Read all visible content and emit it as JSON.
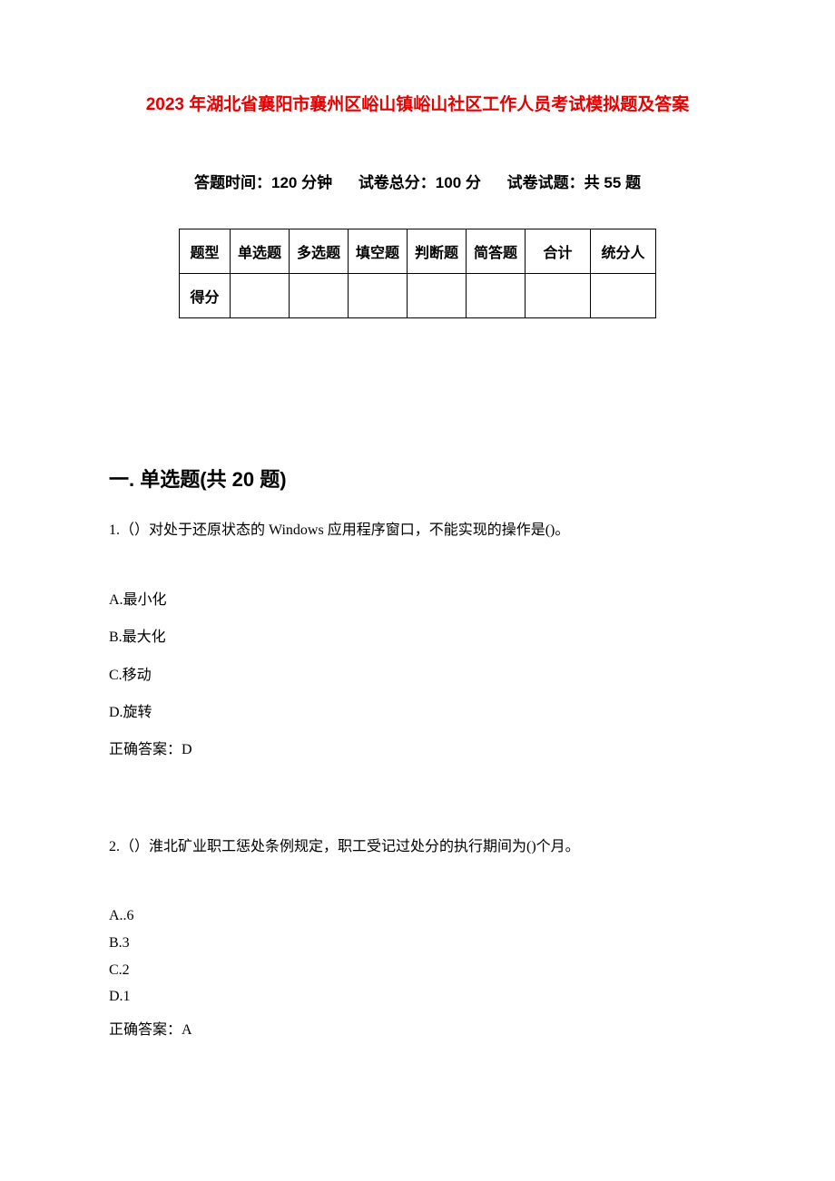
{
  "title": "2023 年湖北省襄阳市襄州区峪山镇峪山社区工作人员考试模拟题及答案",
  "examInfo": {
    "timeLabel": "答题时间：120 分钟",
    "totalLabel": "试卷总分：100 分",
    "countLabel": "试卷试题：共 55 题"
  },
  "scoreTable": {
    "headers": [
      "题型",
      "单选题",
      "多选题",
      "填空题",
      "判断题",
      "简答题",
      "合计",
      "统分人"
    ],
    "rowLabel": "得分"
  },
  "section1": {
    "title": "一. 单选题(共 20 题)",
    "q1": {
      "text": "1.（）对处于还原状态的 Windows 应用程序窗口，不能实现的操作是()。",
      "optA": "A.最小化",
      "optB": "B.最大化",
      "optC": "C.移动",
      "optD": "D.旋转",
      "answer": "正确答案：D"
    },
    "q2": {
      "text": "2.（）淮北矿业职工惩处条例规定，职工受记过处分的执行期间为()个月。",
      "optA": "A..6",
      "optB": "B.3",
      "optC": "C.2",
      "optD": "D.1",
      "answer": "正确答案：A"
    }
  },
  "colors": {
    "titleColor": "#e80000",
    "textColor": "#000000",
    "background": "#ffffff",
    "borderColor": "#000000"
  }
}
